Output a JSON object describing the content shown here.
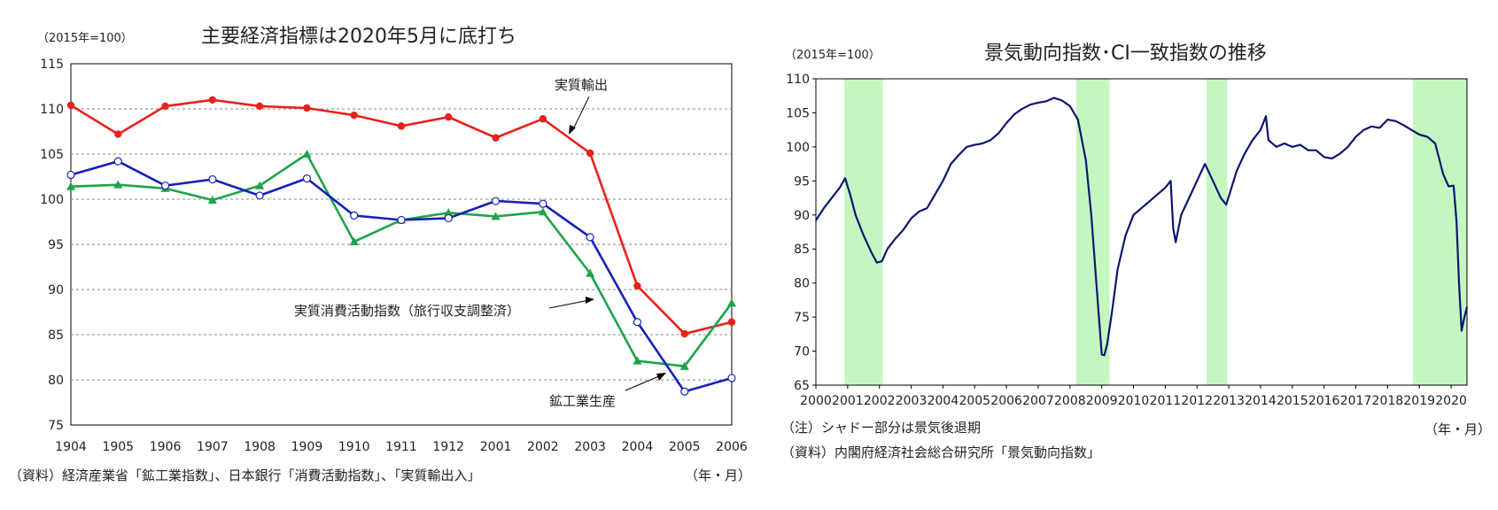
{
  "chart_data": [
    {
      "type": "line",
      "title": "主要経済指標は2020年5月に底打ち",
      "unit_label": "（2015年=100）",
      "period_label": "（年・月）",
      "source": "（資料）経済産業省「鉱工業指数」、日本銀行「消費活動指数」、「実質輸出入」",
      "categories": [
        "1904",
        "1905",
        "1906",
        "1907",
        "1908",
        "1909",
        "1910",
        "1911",
        "1912",
        "2001",
        "2002",
        "2003",
        "2004",
        "2005",
        "2006"
      ],
      "ylim": [
        75,
        115
      ],
      "yticks": [
        75,
        80,
        85,
        90,
        95,
        100,
        105,
        110,
        115
      ],
      "grid": true,
      "series": [
        {
          "name": "実質輸出",
          "color": "#e8211c",
          "marker": "filled-circle",
          "values": [
            110.4,
            107.2,
            110.3,
            111.0,
            110.3,
            110.1,
            109.3,
            108.1,
            109.1,
            106.8,
            108.9,
            105.1,
            90.4,
            85.1,
            86.4
          ]
        },
        {
          "name": "実質消費活動指数（旅行収支調整済）",
          "color": "#1fa34a",
          "marker": "triangle",
          "values": [
            101.4,
            101.6,
            101.2,
            99.9,
            101.5,
            105.0,
            95.3,
            97.7,
            98.5,
            98.1,
            98.6,
            91.8,
            82.1,
            81.5,
            88.5
          ]
        },
        {
          "name": "鉱工業生産",
          "color": "#1621b8",
          "marker": "open-circle",
          "values": [
            102.7,
            104.2,
            101.5,
            102.2,
            100.4,
            102.3,
            98.2,
            97.7,
            97.9,
            99.8,
            99.5,
            95.8,
            86.4,
            78.7,
            80.2
          ]
        }
      ]
    },
    {
      "type": "line",
      "title": "景気動向指数･CI一致指数の推移",
      "unit_label": "（2015年=100）",
      "period_label": "（年・月）",
      "note": "（注）シャドー部分は景気後退期",
      "source": "（資料）内閣府経済社会総合研究所「景気動向指数」",
      "xlim": [
        2000.0,
        2020.5
      ],
      "xticks": [
        "2000",
        "2001",
        "2002",
        "2003",
        "2004",
        "2005",
        "2006",
        "2007",
        "2008",
        "2009",
        "2010",
        "2011",
        "2012",
        "2013",
        "2014",
        "2015",
        "2016",
        "2017",
        "2018",
        "2019",
        "2020"
      ],
      "ylim": [
        65,
        110
      ],
      "yticks": [
        65,
        70,
        75,
        80,
        85,
        90,
        95,
        100,
        105,
        110
      ],
      "grid": false,
      "line_color": "#0b1670",
      "shading_color": "#c4f7c0",
      "recessions": [
        [
          2000.9,
          2002.1
        ],
        [
          2008.2,
          2009.25
        ],
        [
          2012.3,
          2012.95
        ],
        [
          2018.8,
          2020.5
        ]
      ],
      "x": [
        2000.0,
        2000.25,
        2000.5,
        2000.75,
        2000.92,
        2001.08,
        2001.25,
        2001.5,
        2001.75,
        2001.92,
        2002.08,
        2002.25,
        2002.5,
        2002.75,
        2003.0,
        2003.25,
        2003.5,
        2003.75,
        2004.0,
        2004.25,
        2004.5,
        2004.75,
        2005.0,
        2005.25,
        2005.5,
        2005.75,
        2006.0,
        2006.25,
        2006.5,
        2006.75,
        2007.0,
        2007.25,
        2007.5,
        2007.75,
        2008.0,
        2008.25,
        2008.5,
        2008.67,
        2008.83,
        2009.0,
        2009.08,
        2009.17,
        2009.33,
        2009.5,
        2009.75,
        2010.0,
        2010.25,
        2010.5,
        2010.75,
        2011.0,
        2011.17,
        2011.25,
        2011.33,
        2011.5,
        2011.75,
        2012.0,
        2012.25,
        2012.5,
        2012.75,
        2012.92,
        2013.25,
        2013.5,
        2013.75,
        2014.0,
        2014.17,
        2014.25,
        2014.5,
        2014.75,
        2015.0,
        2015.25,
        2015.5,
        2015.75,
        2016.0,
        2016.25,
        2016.5,
        2016.75,
        2017.0,
        2017.25,
        2017.5,
        2017.75,
        2018.0,
        2018.25,
        2018.5,
        2018.75,
        2019.0,
        2019.25,
        2019.5,
        2019.75,
        2019.92,
        2020.08,
        2020.17,
        2020.25,
        2020.33,
        2020.42,
        2020.5
      ],
      "y": [
        89.2,
        91.0,
        92.5,
        94.0,
        95.4,
        93.0,
        90.0,
        87.0,
        84.5,
        83.0,
        83.2,
        85.0,
        86.5,
        87.8,
        89.5,
        90.5,
        91.0,
        93.0,
        95.0,
        97.5,
        98.8,
        100.0,
        100.3,
        100.5,
        101.0,
        102.0,
        103.5,
        104.8,
        105.6,
        106.2,
        106.5,
        106.7,
        107.2,
        106.8,
        106.0,
        104.0,
        98.0,
        90.0,
        80.0,
        69.5,
        69.4,
        71.0,
        76.0,
        82.0,
        87.0,
        90.0,
        91.0,
        92.0,
        93.0,
        94.0,
        95.0,
        88.0,
        86.0,
        90.0,
        92.5,
        95.0,
        97.5,
        95.0,
        92.5,
        91.5,
        96.5,
        99.0,
        101.0,
        102.5,
        104.5,
        101.0,
        100.0,
        100.5,
        100.0,
        100.3,
        99.5,
        99.5,
        98.5,
        98.3,
        99.0,
        100.0,
        101.5,
        102.5,
        103.0,
        102.8,
        104.0,
        103.8,
        103.2,
        102.5,
        101.8,
        101.5,
        100.5,
        96.0,
        94.2,
        94.3,
        89.0,
        80.0,
        73.0,
        75.0,
        76.5
      ]
    }
  ],
  "left_annotations": {
    "exports": "実質輸出",
    "consumption": "実質消費活動指数（旅行収支調整済）",
    "production": "鉱工業生産"
  }
}
